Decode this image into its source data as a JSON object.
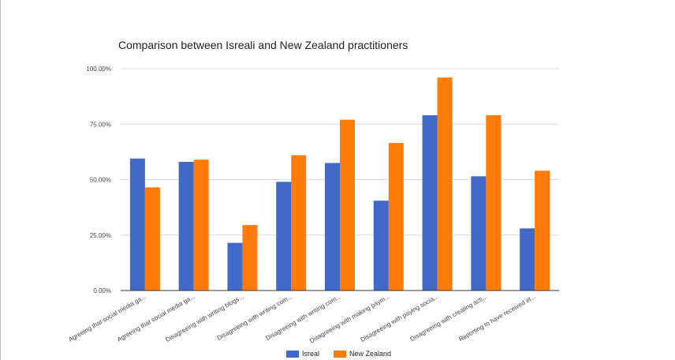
{
  "chart_data": {
    "type": "bar",
    "title": "Comparison between Isreali and New Zealand practitioners",
    "categories": [
      "Agreeing that social media ga...",
      "Agreeing that social media ga...",
      "Disagreeing with writing blogs...",
      "Disagreeing with writing com...",
      "Disagreeing with writing com...",
      "Disagreeing with making paym...",
      "Disagreeing with paying socia...",
      "Disagreeing with creating acti...",
      "Reporting to have received et..."
    ],
    "series": [
      {
        "name": "Isreal",
        "color": "#4169c8",
        "values": [
          59.5,
          58.0,
          21.5,
          49.0,
          57.5,
          40.5,
          79.0,
          51.5,
          28.0
        ]
      },
      {
        "name": "New Zealand",
        "color": "#ff7b0a",
        "values": [
          46.5,
          59.0,
          29.5,
          61.0,
          77.0,
          66.5,
          96.0,
          79.0,
          54.0
        ]
      }
    ],
    "ylim": [
      0,
      100
    ],
    "yticks": [
      0,
      25,
      50,
      75,
      100
    ],
    "ytick_labels": [
      "0.00%",
      "25.00%",
      "50.00%",
      "75.00%",
      "100.00%"
    ],
    "grid": true,
    "legend_position": "bottom"
  }
}
